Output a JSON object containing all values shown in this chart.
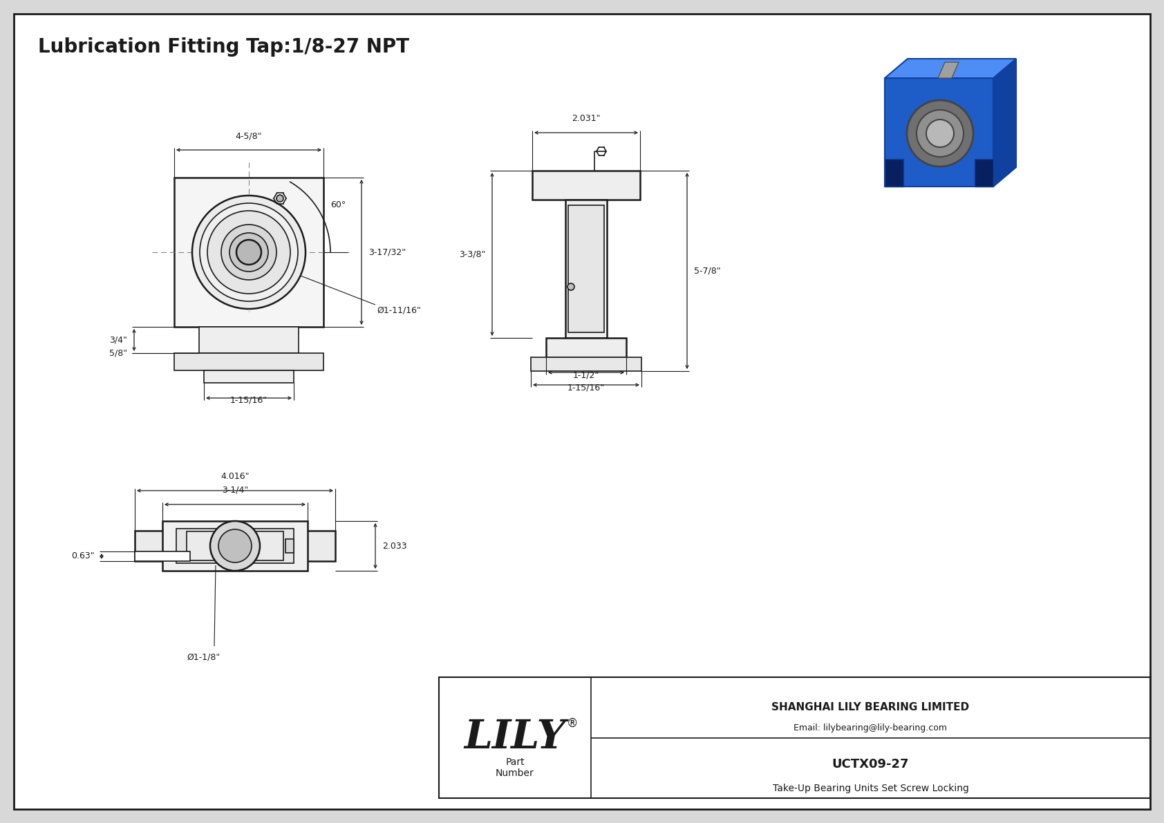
{
  "bg_color": "#d8d8d8",
  "drawing_bg": "#ffffff",
  "line_color": "#1a1a1a",
  "title": "Lubrication Fitting Tap:1/8-27 NPT",
  "part_number": "UCTX09-27",
  "part_desc": "Take-Up Bearing Units Set Screw Locking",
  "company": "SHANGHAI LILY BEARING LIMITED",
  "email": "Email: lilybearing@lily-bearing.com",
  "brand": "LILY",
  "dims": {
    "width_top": "4-5/8\"",
    "angle": "60°",
    "height_right": "3-17/32\"",
    "slot_depth": "3/4\"",
    "slot_width": "5/8\"",
    "center_width": "1-15/16\"",
    "bore_dia": "Ø1-11/16\"",
    "side_width": "2.031\"",
    "side_height1": "3-3/8\"",
    "side_height2": "5-7/8\"",
    "side_base1": "1-1/2\"",
    "side_base2": "1-15/16\"",
    "bottom_total": "4.016\"",
    "bottom_inner": "3-1/4\"",
    "bottom_height": "2.033",
    "bottom_slot": "0.63\"",
    "bottom_bore": "Ø1-1/8\""
  },
  "blue_dark": "#1040a0",
  "blue_mid": "#1e5cc8",
  "blue_light": "#3a7ae0",
  "blue_top": "#4d8df5"
}
